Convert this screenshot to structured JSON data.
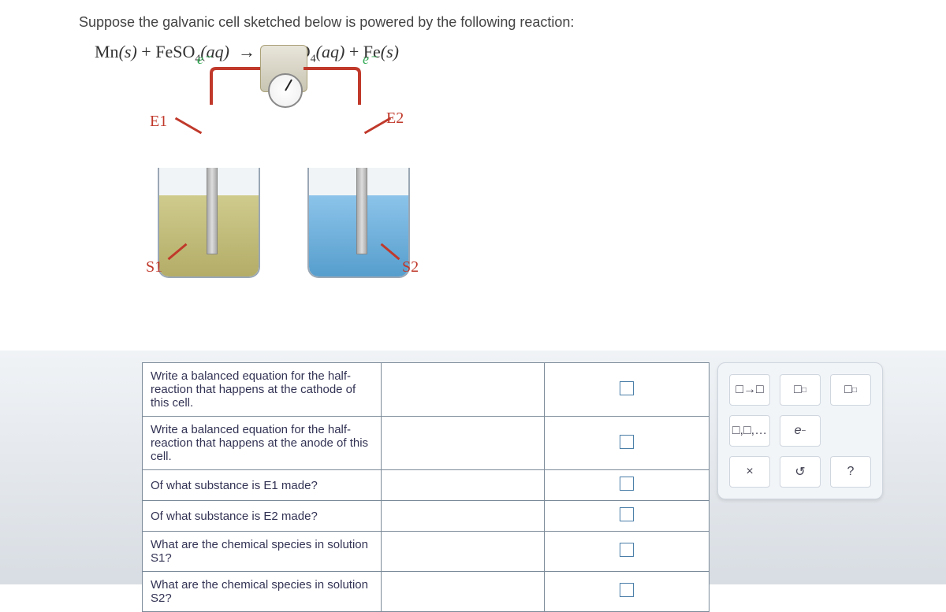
{
  "prompt": "Suppose the galvanic cell sketched below is powered by the following reaction:",
  "equation": {
    "lhs1": "Mn",
    "lhs1_state": "(s)",
    "plus": "+",
    "lhs2": "FeSO",
    "lhs2_sub": "4",
    "lhs2_state": "(aq)",
    "arrow": "→",
    "rhs1": "MnSO",
    "rhs1_sub": "4",
    "rhs1_state": "(aq)",
    "rhs2": "Fe",
    "rhs2_state": "(s)"
  },
  "diagram": {
    "labels": {
      "E1": "E1",
      "E2": "E2",
      "S1": "S1",
      "S2": "S2",
      "e_left": "e⁻",
      "e_right": "e⁻"
    },
    "colors": {
      "electrode_label": "#c0392b",
      "solution_label": "#c0392b",
      "electron_label": "#338855",
      "wire": "#c0392b",
      "left_liquid": "#a9a04f",
      "right_liquid": "#3b8fc6",
      "beaker_border": "#9aa7b5"
    }
  },
  "questions": {
    "cols": [
      "prompt",
      "answer"
    ],
    "rows": [
      {
        "prompt": "Write a balanced equation for the half-reaction that happens at the cathode of this cell."
      },
      {
        "prompt": "Write a balanced equation for the half-reaction that happens at the anode of this cell."
      },
      {
        "prompt": "Of what substance is E1 made?"
      },
      {
        "prompt": "Of what substance is E2 made?"
      },
      {
        "prompt": "What are the chemical species in solution S1?"
      },
      {
        "prompt": "What are the chemical species in solution S2?"
      }
    ],
    "style": {
      "border_color": "#7b8a99",
      "font_size": 15,
      "text_color": "#334455",
      "answer_box_border": "#4a7ea8"
    }
  },
  "keypad": {
    "buttons": [
      "□→□",
      "□_sub",
      "□^sup",
      "□,□,…",
      "e⁻",
      "",
      "×",
      "↺",
      "?"
    ],
    "style": {
      "panel_bg": "#f2f5f8",
      "panel_border": "#cfd6de",
      "btn_bg": "#ffffff",
      "btn_border": "#cfd6de"
    }
  }
}
